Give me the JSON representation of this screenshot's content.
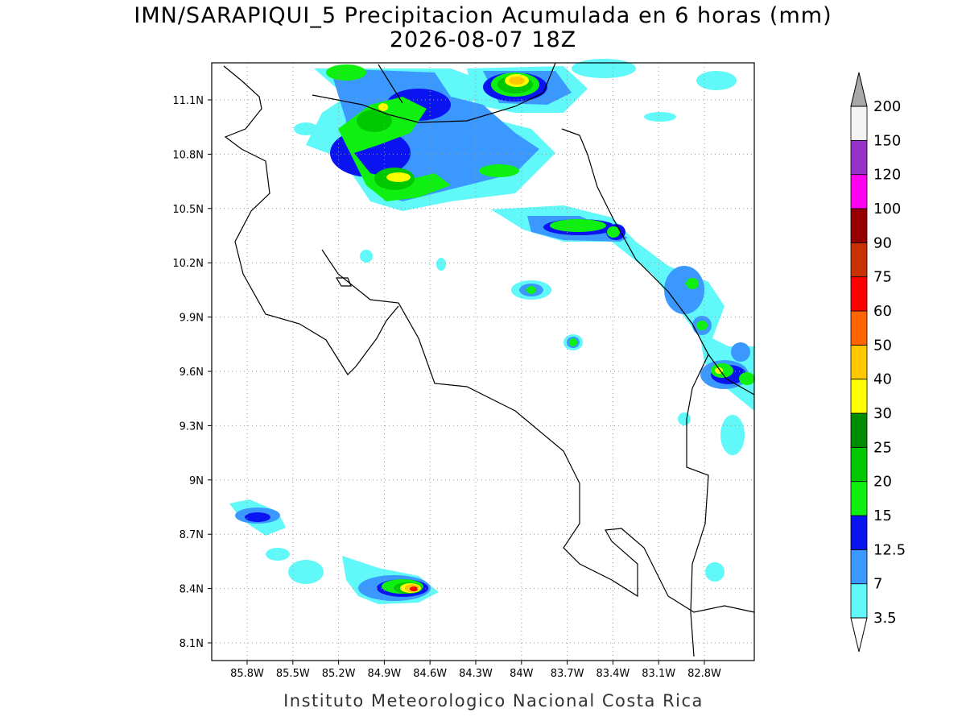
{
  "header": {
    "title": "IMN/SARAPIQUI_5 Precipitacion Acumulada en 6 horas (mm)",
    "subtitle": "2026-08-07 18Z"
  },
  "map": {
    "lat_labels": [
      "11.1N",
      "10.8N",
      "10.5N",
      "10.2N",
      "9.9N",
      "9.6N",
      "9.3N",
      "9N",
      "8.7N",
      "8.4N",
      "8.1N"
    ],
    "lon_labels": [
      "85.8W",
      "85.5W",
      "85.2W",
      "84.9W",
      "84.6W",
      "84.3W",
      "84W",
      "83.7W",
      "83.4W",
      "83.1W",
      "82.8W"
    ]
  },
  "colorbar": {
    "labels": [
      3.5,
      7,
      12.5,
      15,
      20,
      25,
      30,
      40,
      50,
      60,
      75,
      90,
      100,
      120,
      150,
      200
    ],
    "colors": [
      "#60f8f8",
      "#3a98ff",
      "#0a14f0",
      "#10f010",
      "#00c800",
      "#008c00",
      "#ffff00",
      "#ffc800",
      "#ff6400",
      "#ff0000",
      "#c83200",
      "#960000",
      "#ff00f0",
      "#9632c8",
      "#f4f4f4"
    ],
    "under_color": "#ffffff",
    "over_color": "#a8a8a8"
  },
  "footer": "Instituto Meteorologico Nacional Costa Rica"
}
